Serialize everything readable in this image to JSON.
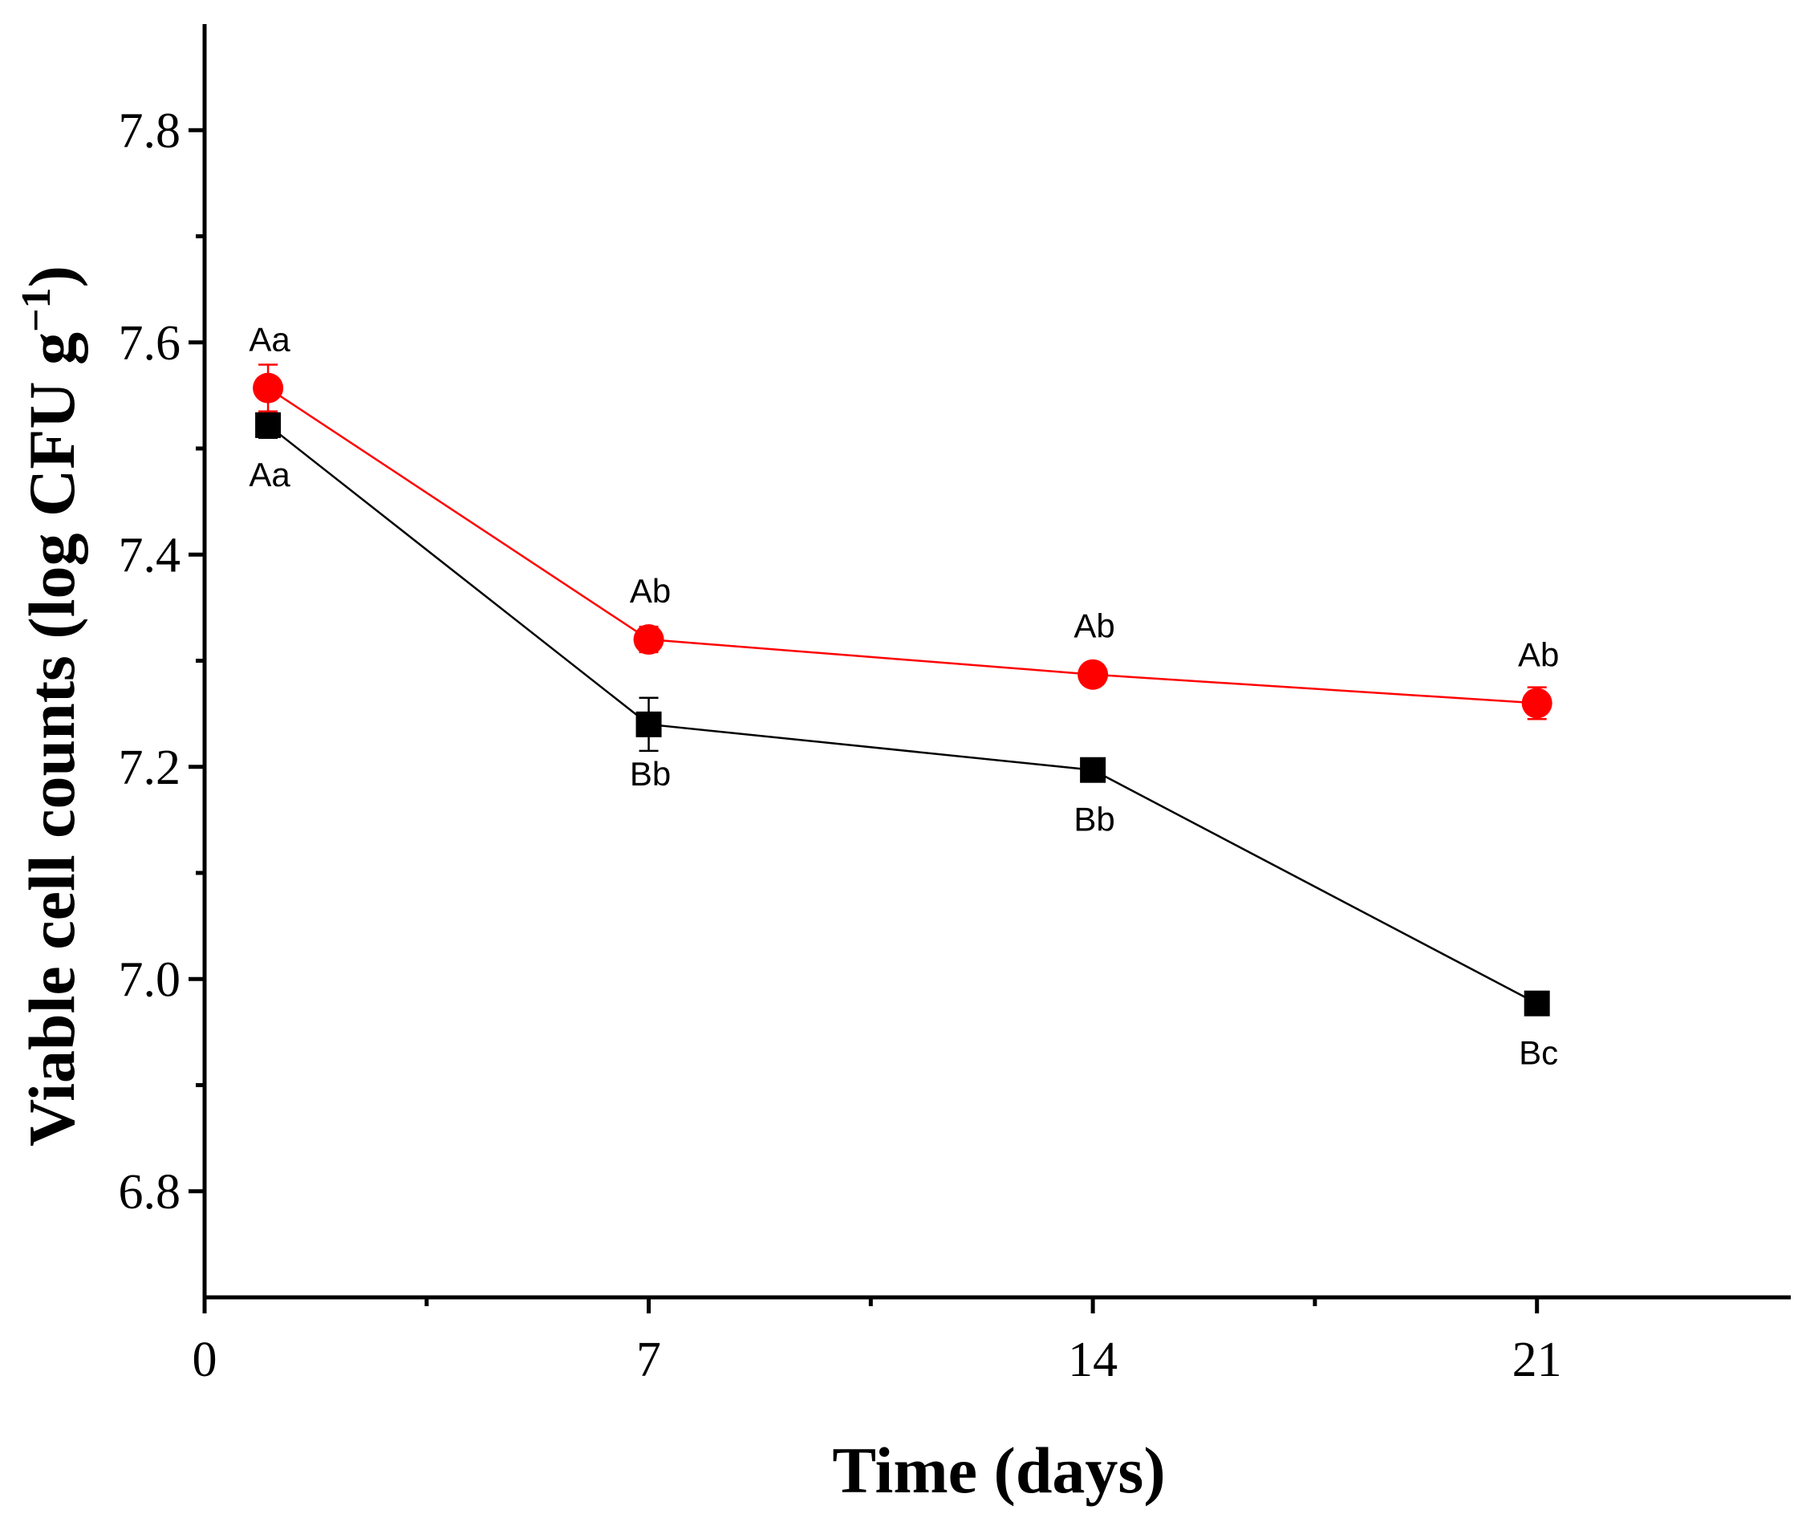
{
  "chart_data": {
    "type": "line",
    "title": "",
    "xlabel": "Time (days)",
    "ylabel_main": "Viable cell counts (log CFU g",
    "ylabel_sup": "−1",
    "ylabel_end": ")",
    "xlim": [
      0,
      25
    ],
    "ylim": [
      6.7,
      7.9
    ],
    "x_major_ticks": [
      0,
      7,
      14,
      21
    ],
    "x_tick_labels": [
      "0",
      "7",
      "14",
      "21"
    ],
    "x_minor_ticks": [
      3.5,
      10.5,
      17.5
    ],
    "y_major_ticks": [
      6.8,
      7.0,
      7.2,
      7.4,
      7.6,
      7.8
    ],
    "y_tick_labels": [
      "6.8",
      "7.0",
      "7.2",
      "7.4",
      "7.6",
      "7.8"
    ],
    "y_minor_ticks": [
      6.9,
      7.1,
      7.3,
      7.5,
      7.7
    ],
    "grid": false,
    "series": [
      {
        "name": "black",
        "color": "#000000",
        "marker": "square",
        "x": [
          1,
          7,
          14,
          21
        ],
        "y": [
          7.522,
          7.24,
          7.197,
          6.977
        ],
        "err": [
          0.012,
          0.025,
          0.01,
          0.008
        ],
        "labels": [
          "Aa",
          "Bb",
          "Bb",
          "Bc"
        ],
        "label_position": "below"
      },
      {
        "name": "red",
        "color": "#ff0000",
        "marker": "circle",
        "x": [
          1,
          7,
          14,
          21
        ],
        "y": [
          7.557,
          7.32,
          7.287,
          7.26
        ],
        "err": [
          0.022,
          0.012,
          0.01,
          0.015
        ],
        "labels": [
          "Aa",
          "Ab",
          "Ab",
          "Ab"
        ],
        "label_position": "above"
      }
    ]
  }
}
